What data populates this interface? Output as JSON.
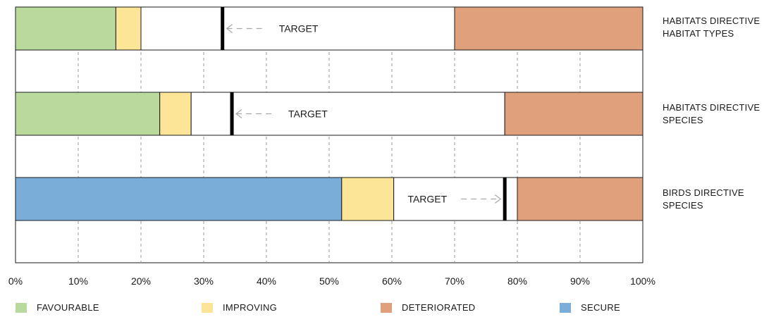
{
  "chart_data": {
    "type": "bar",
    "orientation": "horizontal",
    "stacked": true,
    "xlim": [
      0,
      100
    ],
    "x_ticks": [
      "0%",
      "10%",
      "20%",
      "30%",
      "40%",
      "50%",
      "60%",
      "70%",
      "80%",
      "90%",
      "100%"
    ],
    "grid": "vertical dashed",
    "target_label": "TARGET",
    "rows": [
      {
        "label": [
          "HABITATS DIRECTIVE",
          "HABITAT TYPES"
        ],
        "segments": [
          {
            "category": "FAVOURABLE",
            "value": 16
          },
          {
            "category": "IMPROVING",
            "value": 4
          },
          {
            "category": "UNLABELLED",
            "value": 50
          },
          {
            "category": "DETERIORATED",
            "value": 30
          }
        ],
        "target": 33
      },
      {
        "label": [
          "HABITATS DIRECTIVE",
          "SPECIES"
        ],
        "segments": [
          {
            "category": "FAVOURABLE",
            "value": 23
          },
          {
            "category": "IMPROVING",
            "value": 5
          },
          {
            "category": "UNLABELLED",
            "value": 50
          },
          {
            "category": "DETERIORATED",
            "value": 22
          }
        ],
        "target": 34.5
      },
      {
        "label": [
          "BIRDS DIRECTIVE",
          "SPECIES"
        ],
        "segments": [
          {
            "category": "SECURE",
            "value": 52
          },
          {
            "category": "IMPROVING",
            "value": 8.3
          },
          {
            "category": "UNLABELLED",
            "value": 19.7
          },
          {
            "category": "DETERIORATED",
            "value": 20
          }
        ],
        "target": 78
      }
    ],
    "legend": [
      {
        "name": "FAVOURABLE",
        "color": "#b9d99d"
      },
      {
        "name": "IMPROVING",
        "color": "#fde597"
      },
      {
        "name": "DETERIORATED",
        "color": "#e0a07c"
      },
      {
        "name": "SECURE",
        "color": "#7aaed8"
      }
    ],
    "legend_position": "bottom",
    "unlabelled_color": "#ffffff"
  }
}
